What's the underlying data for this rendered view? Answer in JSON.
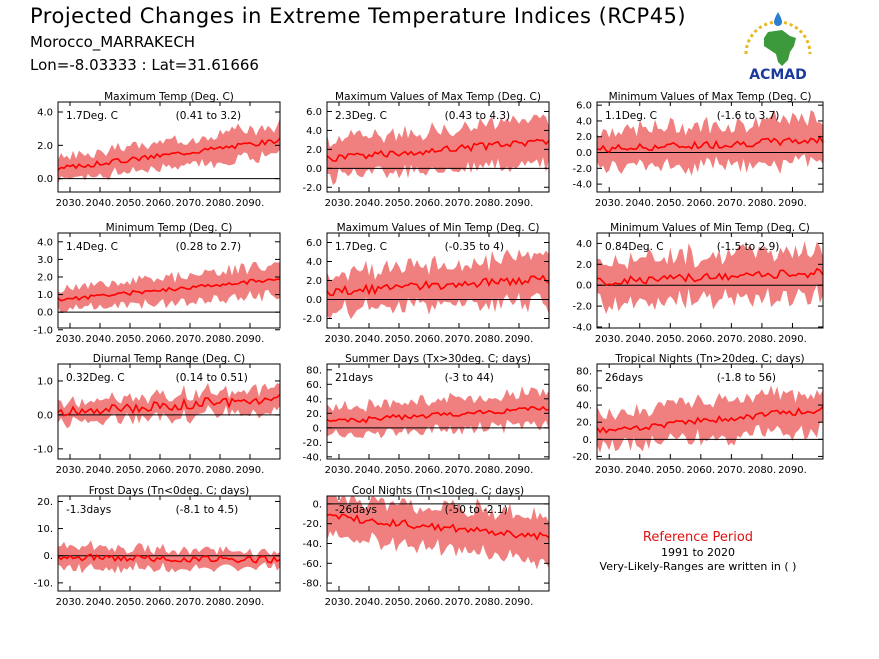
{
  "header": {
    "title": "Projected Changes in Extreme Temperature Indices (RCP45)",
    "location": "Morocco_MARRAKECH",
    "coords": "Lon=-8.03333 : Lat=31.61666"
  },
  "logo": {
    "text": "ACMAD"
  },
  "reference": {
    "title": "Reference Period",
    "years": "1991 to 2020",
    "note": "Very-Likely-Ranges are written in ( )"
  },
  "colors": {
    "band": "#f08080",
    "line": "#ff0000",
    "zero": "#000000",
    "logo_text": "#1a3a9c",
    "logo_green": "#3c9a3c",
    "logo_yellow": "#e8b820",
    "logo_blue": "#2a7fd0"
  },
  "chart_data": [
    {
      "type": "area",
      "title": "Maximum Temp (Deg. C)",
      "stat": "1.7Deg. C",
      "range_text": "(0.41 to 3.2)",
      "x_start": 2026,
      "x_end": 2100,
      "ylim": [
        -0.8,
        4.6
      ],
      "yticks": [
        0,
        2,
        4
      ],
      "ytick_labels": [
        "0.0",
        "2.0",
        "4.0"
      ],
      "xtick_labels": [
        "2030.",
        "2040.",
        "2050.",
        "2060.",
        "2070.",
        "2080.",
        "2090."
      ],
      "median_start": 0.6,
      "median_end": 2.3,
      "spread_start": 0.55,
      "spread_end": 0.8,
      "jitter": 0.15,
      "seed": 3
    },
    {
      "type": "area",
      "title": "Maximum Values of Max Temp (Deg. C)",
      "stat": "2.3Deg. C",
      "range_text": "(0.43 to 4.3)",
      "x_start": 2026,
      "x_end": 2100,
      "ylim": [
        -2.5,
        7.0
      ],
      "yticks": [
        -2,
        0,
        2,
        4,
        6
      ],
      "ytick_labels": [
        "-2.0",
        "0.0",
        "2.0",
        "4.0",
        "6.0"
      ],
      "xtick_labels": [
        "2030.",
        "2040.",
        "2050.",
        "2060.",
        "2070.",
        "2080.",
        "2090."
      ],
      "median_start": 1.0,
      "median_end": 2.9,
      "spread_start": 1.6,
      "spread_end": 2.0,
      "jitter": 0.4,
      "seed": 5
    },
    {
      "type": "area",
      "title": "Minimum Values of Max Temp (Deg. C)",
      "stat": "1.1Deg. C",
      "range_text": "(-1.6 to 3.7)",
      "x_start": 2026,
      "x_end": 2100,
      "ylim": [
        -5.0,
        6.4
      ],
      "yticks": [
        -4,
        -2,
        0,
        2,
        4,
        6
      ],
      "ytick_labels": [
        "-4.0",
        "-2.0",
        "0.0",
        "2.0",
        "4.0",
        "6.0"
      ],
      "xtick_labels": [
        "2030.",
        "2040.",
        "2050.",
        "2060.",
        "2070.",
        "2080.",
        "2090."
      ],
      "median_start": 0.4,
      "median_end": 1.6,
      "spread_start": 2.0,
      "spread_end": 2.4,
      "jitter": 0.5,
      "seed": 7
    },
    {
      "type": "area",
      "title": "Minimum Temp (Deg. C)",
      "stat": "1.4Deg. C",
      "range_text": "(0.28 to 2.7)",
      "x_start": 2026,
      "x_end": 2100,
      "ylim": [
        -0.9,
        4.5
      ],
      "yticks": [
        -1,
        0,
        1,
        2,
        3,
        4
      ],
      "ytick_labels": [
        "-1.0",
        "0.0",
        "1.0",
        "2.0",
        "3.0",
        "4.0"
      ],
      "xtick_labels": [
        "2030.",
        "2040.",
        "2050.",
        "2060.",
        "2070.",
        "2080.",
        "2090."
      ],
      "median_start": 0.7,
      "median_end": 1.9,
      "spread_start": 0.5,
      "spread_end": 0.75,
      "jitter": 0.12,
      "seed": 11
    },
    {
      "type": "area",
      "title": "Maximum Values of Min Temp (Deg. C)",
      "stat": "1.7Deg. C",
      "range_text": "(-0.35 to 4)",
      "x_start": 2026,
      "x_end": 2100,
      "ylim": [
        -3.0,
        7.0
      ],
      "yticks": [
        -2,
        0,
        2,
        4,
        6
      ],
      "ytick_labels": [
        "-2.0",
        "0.0",
        "2.0",
        "4.0",
        "6.0"
      ],
      "xtick_labels": [
        "2030.",
        "2040.",
        "2050.",
        "2060.",
        "2070.",
        "2080.",
        "2090."
      ],
      "median_start": 0.8,
      "median_end": 2.2,
      "spread_start": 1.7,
      "spread_end": 2.1,
      "jitter": 0.45,
      "seed": 13
    },
    {
      "type": "area",
      "title": "Minimum Values of Min Temp (Deg. C)",
      "stat": "0.84Deg. C",
      "range_text": "(-1.5 to 2.9)",
      "x_start": 2026,
      "x_end": 2100,
      "ylim": [
        -4.1,
        5.0
      ],
      "yticks": [
        -4,
        -2,
        0,
        2,
        4
      ],
      "ytick_labels": [
        "-4.0",
        "-2.0",
        "0.0",
        "2.0",
        "4.0"
      ],
      "xtick_labels": [
        "2030.",
        "2040.",
        "2050.",
        "2060.",
        "2070.",
        "2080.",
        "2090."
      ],
      "median_start": 0.3,
      "median_end": 1.2,
      "spread_start": 1.8,
      "spread_end": 2.0,
      "jitter": 0.4,
      "seed": 17
    },
    {
      "type": "area",
      "title": "Diurnal Temp Range (Deg. C)",
      "stat": "0.32Deg. C",
      "range_text": "(0.14 to 0.51)",
      "x_start": 2026,
      "x_end": 2100,
      "ylim": [
        -1.3,
        1.5
      ],
      "yticks": [
        -1,
        0,
        1
      ],
      "ytick_labels": [
        "-1.0",
        "0.0",
        "1.0"
      ],
      "xtick_labels": [
        "2030.",
        "2040.",
        "2050.",
        "2060.",
        "2070.",
        "2080.",
        "2090."
      ],
      "median_start": 0.05,
      "median_end": 0.5,
      "spread_start": 0.25,
      "spread_end": 0.3,
      "jitter": 0.15,
      "seed": 19
    },
    {
      "type": "area",
      "title": "Summer Days (Tx>30deg. C; days)",
      "stat": "21days",
      "range_text": "(-3 to 44)",
      "x_start": 2026,
      "x_end": 2100,
      "ylim": [
        -43,
        88
      ],
      "yticks": [
        -40,
        -20,
        0,
        20,
        40,
        60,
        80
      ],
      "ytick_labels": [
        "-40.",
        "-20.",
        "0.",
        "20.",
        "40.",
        "60.",
        "80."
      ],
      "xtick_labels": [
        "2030.",
        "2040.",
        "2050.",
        "2060.",
        "2070.",
        "2080.",
        "2090."
      ],
      "median_start": 8,
      "median_end": 28,
      "spread_start": 16,
      "spread_end": 20,
      "jitter": 4,
      "seed": 23
    },
    {
      "type": "area",
      "title": "Tropical Nights (Tn>20deg. C; days)",
      "stat": "26days",
      "range_text": "(-1.8 to 56)",
      "x_start": 2026,
      "x_end": 2100,
      "ylim": [
        -23,
        88
      ],
      "yticks": [
        -20,
        0,
        20,
        40,
        60,
        80
      ],
      "ytick_labels": [
        "-20.",
        "0.",
        "20.",
        "40.",
        "60.",
        "80."
      ],
      "xtick_labels": [
        "2030.",
        "2040.",
        "2050.",
        "2060.",
        "2070.",
        "2080.",
        "2090."
      ],
      "median_start": 10,
      "median_end": 35,
      "spread_start": 16,
      "spread_end": 20,
      "jitter": 4,
      "seed": 29
    },
    {
      "type": "area",
      "title": "Frost Days (Tn<0deg. C; days)",
      "stat": "-1.3days",
      "range_text": "(-8.1 to 4.5)",
      "x_start": 2026,
      "x_end": 2100,
      "ylim": [
        -13,
        22
      ],
      "yticks": [
        -10,
        0,
        10,
        20
      ],
      "ytick_labels": [
        "-10.",
        "0.",
        "10.",
        "20."
      ],
      "xtick_labels": [
        "2030.",
        "2040.",
        "2050.",
        "2060.",
        "2070.",
        "2080.",
        "2090."
      ],
      "median_start": -0.5,
      "median_end": -1.5,
      "spread_start": 3.5,
      "spread_end": 2.5,
      "jitter": 1.2,
      "seed": 31
    },
    {
      "type": "area",
      "title": "Cool Nights (Tn<10deg. C; days)",
      "stat": "-26days",
      "range_text": "(-50 to -2.1)",
      "x_start": 2026,
      "x_end": 2100,
      "ylim": [
        -88,
        8
      ],
      "yticks": [
        -80,
        -60,
        -40,
        -20,
        0
      ],
      "ytick_labels": [
        "-80.",
        "-60.",
        "-40.",
        "-20.",
        "0."
      ],
      "xtick_labels": [
        "2030.",
        "2040.",
        "2050.",
        "2060.",
        "2070.",
        "2080.",
        "2090."
      ],
      "median_start": -13,
      "median_end": -33,
      "spread_start": 16,
      "spread_end": 20,
      "jitter": 4,
      "seed": 37
    }
  ]
}
